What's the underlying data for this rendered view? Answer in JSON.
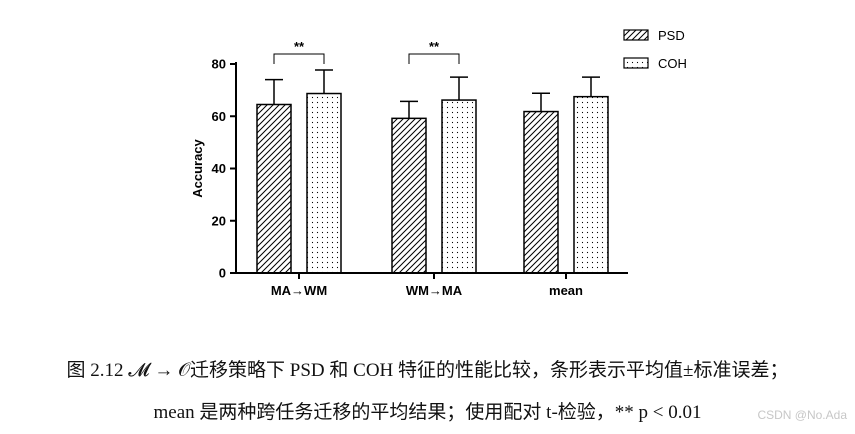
{
  "chart_data": {
    "type": "bar",
    "ylabel": "Accuracy",
    "xlabel": "",
    "ylim": [
      0,
      80
    ],
    "yticks": [
      0,
      20,
      40,
      60,
      80
    ],
    "categories": [
      "MA→WM",
      "WM→MA",
      "mean"
    ],
    "series": [
      {
        "name": "PSD",
        "pattern": "diagonal-hatch",
        "values": [
          64.5,
          59.2,
          61.8
        ],
        "errors": [
          9.5,
          6.5,
          7.0
        ]
      },
      {
        "name": "COH",
        "pattern": "dots",
        "values": [
          68.7,
          66.2,
          67.5
        ],
        "errors": [
          9.0,
          8.8,
          7.5
        ]
      }
    ],
    "annotations": [
      {
        "category": "MA→WM",
        "text": "**"
      },
      {
        "category": "WM→MA",
        "text": "**"
      }
    ],
    "legend_position": "top-right",
    "grid": false
  },
  "caption": {
    "line1": "图 2.12  𝓜 → 𝒪迁移策略下 PSD 和 COH 特征的性能比较，条形表示平均值±标准误差；",
    "line2": "mean 是两种跨任务迁移的平均结果；使用配对 t-检验，** p < 0.01"
  },
  "watermark": "CSDN @No.Ada"
}
